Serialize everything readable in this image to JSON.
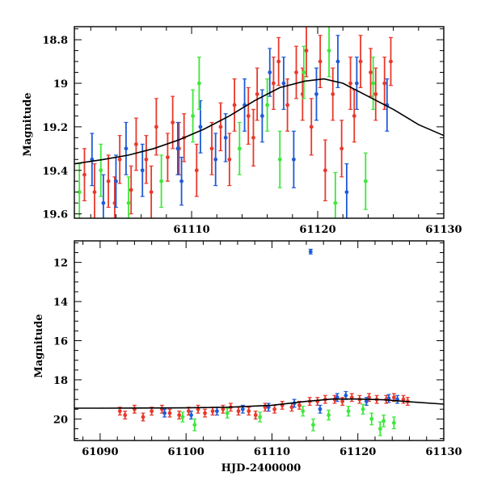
{
  "chart_data": [
    {
      "type": "scatter",
      "panel": "top",
      "xlabel": "",
      "ylabel": "Magnitude",
      "xlim": [
        61100.7,
        61130
      ],
      "ylim": [
        19.62,
        18.74
      ],
      "y_inverted": true,
      "x_ticks": [
        61110,
        61120,
        61130
      ],
      "x_tick_labels": [
        "61110",
        "61120",
        "61130"
      ],
      "y_ticks": [
        18.8,
        19,
        19.2,
        19.4,
        19.6
      ],
      "y_tick_labels": [
        "18.8",
        "19",
        "19.2",
        "19.4",
        "19.6"
      ],
      "model_curve": {
        "name": "",
        "color": "#000000",
        "x": [
          61100.7,
          61103,
          61105,
          61107,
          61109,
          61111,
          61113,
          61115,
          61117,
          61119,
          61120.5,
          61122,
          61124,
          61126,
          61128,
          61130
        ],
        "y": [
          19.37,
          19.35,
          19.33,
          19.3,
          19.26,
          19.21,
          19.15,
          19.08,
          19.02,
          18.99,
          18.98,
          19.0,
          19.06,
          19.12,
          19.19,
          19.24
        ]
      },
      "series_colors": [
        "#e8392b",
        "#1e5bd8",
        "#3de83a"
      ],
      "series": [
        {
          "name": "",
          "color": "#e8392b",
          "points": [
            [
              61101.5,
              19.42,
              0.12
            ],
            [
              61102.3,
              19.5,
              0.13
            ],
            [
              61103.4,
              19.45,
              0.12
            ],
            [
              61103.9,
              19.55,
              0.12
            ],
            [
              61104.3,
              19.35,
              0.11
            ],
            [
              61105.2,
              19.49,
              0.11
            ],
            [
              61105.6,
              19.28,
              0.12
            ],
            [
              61106.4,
              19.35,
              0.11
            ],
            [
              61106.8,
              19.5,
              0.12
            ],
            [
              61107.2,
              19.2,
              0.13
            ],
            [
              61108.1,
              19.34,
              0.11
            ],
            [
              61108.5,
              19.18,
              0.12
            ],
            [
              61109.0,
              19.3,
              0.12
            ],
            [
              61109.4,
              19.25,
              0.11
            ],
            [
              61110.4,
              19.4,
              0.12
            ],
            [
              61111.6,
              19.3,
              0.12
            ],
            [
              61112.3,
              19.2,
              0.11
            ],
            [
              61113.0,
              19.35,
              0.12
            ],
            [
              61113.4,
              19.1,
              0.12
            ],
            [
              61114.5,
              19.15,
              0.13
            ],
            [
              61115.2,
              19.05,
              0.12
            ],
            [
              61116.5,
              19.0,
              0.12
            ],
            [
              61116.9,
              18.9,
              0.11
            ],
            [
              61117.6,
              19.1,
              0.12
            ],
            [
              61118.3,
              18.95,
              0.12
            ],
            [
              61119.1,
              18.85,
              0.12
            ],
            [
              61119.5,
              19.2,
              0.13
            ],
            [
              61120.2,
              18.9,
              0.12
            ],
            [
              61120.6,
              19.4,
              0.14
            ],
            [
              61121.2,
              19.05,
              0.12
            ],
            [
              61121.9,
              19.3,
              0.13
            ],
            [
              61122.6,
              19.0,
              0.12
            ],
            [
              61123.4,
              18.9,
              0.12
            ],
            [
              61124.2,
              18.95,
              0.11
            ],
            [
              61124.6,
              19.05,
              0.12
            ],
            [
              61125.3,
              19.0,
              0.12
            ],
            [
              61125.8,
              18.9,
              0.11
            ],
            [
              61118.8,
              19.05,
              0.12
            ],
            [
              61122.9,
              19.15,
              0.12
            ],
            [
              61114.9,
              19.25,
              0.13
            ]
          ]
        },
        {
          "name": "",
          "color": "#1e5bd8",
          "points": [
            [
              61102.1,
              19.35,
              0.12
            ],
            [
              61103.0,
              19.55,
              0.13
            ],
            [
              61104.0,
              19.45,
              0.12
            ],
            [
              61104.8,
              19.3,
              0.12
            ],
            [
              61106.1,
              19.4,
              0.12
            ],
            [
              61108.9,
              19.3,
              0.12
            ],
            [
              61109.2,
              19.45,
              0.11
            ],
            [
              61110.7,
              19.2,
              0.12
            ],
            [
              61111.9,
              19.35,
              0.12
            ],
            [
              61112.7,
              19.25,
              0.11
            ],
            [
              61114.2,
              19.1,
              0.12
            ],
            [
              61115.6,
              19.15,
              0.12
            ],
            [
              61116.2,
              18.95,
              0.11
            ],
            [
              61117.3,
              19.0,
              0.12
            ],
            [
              61118.1,
              19.35,
              0.13
            ],
            [
              61119.9,
              19.05,
              0.12
            ],
            [
              61121.6,
              18.9,
              0.12
            ],
            [
              61122.3,
              19.5,
              0.13
            ],
            [
              61123.1,
              19.0,
              0.12
            ],
            [
              61125.5,
              19.1,
              0.12
            ]
          ]
        },
        {
          "name": "",
          "color": "#3de83a",
          "points": [
            [
              61101.1,
              19.5,
              0.13
            ],
            [
              61102.8,
              19.4,
              0.12
            ],
            [
              61105.0,
              19.55,
              0.12
            ],
            [
              61107.6,
              19.45,
              0.12
            ],
            [
              61110.1,
              19.15,
              0.12
            ],
            [
              61110.6,
              19.0,
              0.12
            ],
            [
              61113.8,
              19.3,
              0.12
            ],
            [
              61116.0,
              19.1,
              0.12
            ],
            [
              61117.0,
              19.35,
              0.13
            ],
            [
              61118.9,
              18.95,
              0.12
            ],
            [
              61120.9,
              18.85,
              0.12
            ],
            [
              61121.4,
              19.55,
              0.14
            ],
            [
              61123.8,
              19.45,
              0.13
            ],
            [
              61124.4,
              19.0,
              0.12
            ]
          ]
        }
      ]
    },
    {
      "type": "scatter",
      "panel": "bottom",
      "xlabel": "HJD-2400000",
      "ylabel": "Magnitude",
      "xlim": [
        61087,
        61130
      ],
      "ylim": [
        21.1,
        10.9
      ],
      "y_inverted": true,
      "x_ticks": [
        61090,
        61100,
        61110,
        61120,
        61130
      ],
      "x_tick_labels": [
        "61090",
        "61100",
        "61110",
        "61120",
        "61130"
      ],
      "y_ticks": [
        12,
        14,
        16,
        18,
        20
      ],
      "y_tick_labels": [
        "12",
        "14",
        "16",
        "18",
        "20"
      ],
      "model_curve": {
        "name": "",
        "color": "#000000",
        "x": [
          61087,
          61090,
          61095,
          61100,
          61105,
          61110,
          61114,
          61117,
          61120,
          61123,
          61126,
          61130
        ],
        "y": [
          19.45,
          19.45,
          19.44,
          19.43,
          19.4,
          19.3,
          19.1,
          18.98,
          18.98,
          19.02,
          19.12,
          19.24
        ]
      },
      "series": [
        {
          "name": "",
          "color": "#e8392b",
          "points": [
            [
              61092.3,
              19.6,
              0.2
            ],
            [
              61092.9,
              19.8,
              0.2
            ],
            [
              61094.0,
              19.5,
              0.2
            ],
            [
              61095.0,
              19.9,
              0.2
            ],
            [
              61096.0,
              19.6,
              0.2
            ],
            [
              61097.2,
              19.5,
              0.2
            ],
            [
              61098.1,
              19.7,
              0.2
            ],
            [
              61099.2,
              19.8,
              0.2
            ],
            [
              61100.3,
              19.6,
              0.2
            ],
            [
              61101.4,
              19.5,
              0.2
            ],
            [
              61102.2,
              19.7,
              0.2
            ],
            [
              61103.1,
              19.6,
              0.2
            ],
            [
              61104.3,
              19.5,
              0.2
            ],
            [
              61105.2,
              19.4,
              0.2
            ],
            [
              61106.1,
              19.6,
              0.2
            ],
            [
              61107.3,
              19.6,
              0.2
            ],
            [
              61108.1,
              19.8,
              0.2
            ],
            [
              61109.2,
              19.4,
              0.2
            ],
            [
              61110.3,
              19.5,
              0.2
            ],
            [
              61111.2,
              19.3,
              0.2
            ],
            [
              61112.3,
              19.4,
              0.2
            ],
            [
              61113.2,
              19.3,
              0.2
            ],
            [
              61114.4,
              19.1,
              0.2
            ],
            [
              61115.3,
              19.1,
              0.2
            ],
            [
              61116.2,
              19.0,
              0.2
            ],
            [
              61117.3,
              19.0,
              0.2
            ],
            [
              61118.2,
              19.1,
              0.2
            ],
            [
              61119.3,
              18.9,
              0.2
            ],
            [
              61120.2,
              19.0,
              0.2
            ],
            [
              61121.3,
              18.9,
              0.2
            ],
            [
              61122.2,
              19.0,
              0.2
            ],
            [
              61123.3,
              19.0,
              0.2
            ],
            [
              61124.2,
              18.9,
              0.2
            ],
            [
              61125.3,
              19.0,
              0.2
            ],
            [
              61125.8,
              19.1,
              0.2
            ]
          ]
        },
        {
          "name": "",
          "color": "#1e5bd8",
          "points": [
            [
              61114.5,
              11.45,
              0.12
            ],
            [
              61097.5,
              19.7,
              0.2
            ],
            [
              61100.6,
              19.8,
              0.2
            ],
            [
              61103.6,
              19.6,
              0.2
            ],
            [
              61106.6,
              19.5,
              0.2
            ],
            [
              61109.6,
              19.4,
              0.2
            ],
            [
              61112.6,
              19.2,
              0.2
            ],
            [
              61115.6,
              19.5,
              0.2
            ],
            [
              61117.6,
              18.9,
              0.2
            ],
            [
              61118.6,
              18.8,
              0.2
            ],
            [
              61121.0,
              19.1,
              0.2
            ],
            [
              61123.6,
              18.95,
              0.2
            ],
            [
              61124.6,
              19.0,
              0.2
            ]
          ]
        },
        {
          "name": "",
          "color": "#3de83a",
          "points": [
            [
              61099.6,
              19.9,
              0.25
            ],
            [
              61101.0,
              20.3,
              0.3
            ],
            [
              61104.8,
              19.7,
              0.25
            ],
            [
              61108.6,
              19.9,
              0.25
            ],
            [
              61113.6,
              19.6,
              0.25
            ],
            [
              61114.8,
              20.3,
              0.3
            ],
            [
              61116.6,
              19.8,
              0.25
            ],
            [
              61118.9,
              19.6,
              0.25
            ],
            [
              61120.6,
              19.5,
              0.25
            ],
            [
              61121.6,
              20.0,
              0.3
            ],
            [
              61122.6,
              20.5,
              0.35
            ],
            [
              61123.0,
              20.1,
              0.3
            ],
            [
              61124.2,
              20.2,
              0.3
            ]
          ]
        }
      ]
    }
  ]
}
